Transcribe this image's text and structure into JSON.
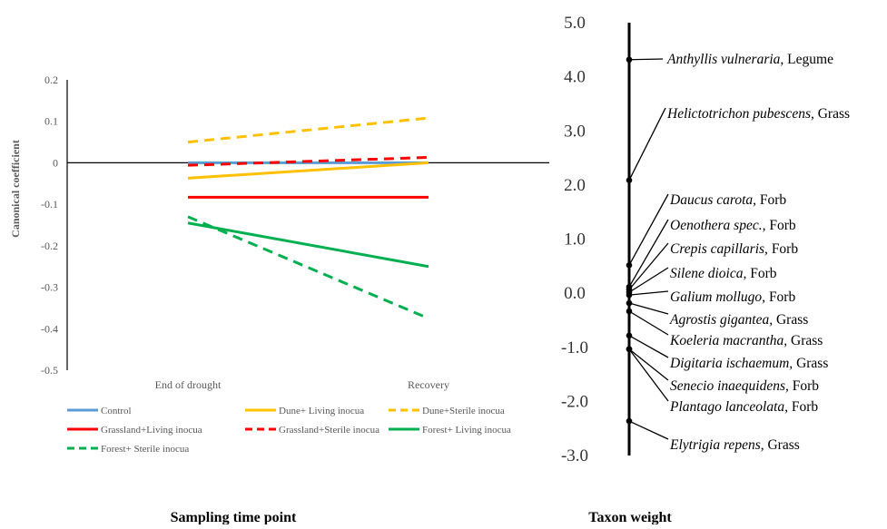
{
  "chart_data": [
    {
      "type": "line",
      "ylabel": "Canonical coefficient",
      "xlabel": "Sampling time point",
      "categories": [
        "End of drought",
        "Recovery"
      ],
      "ylim": [
        -0.5,
        0.2
      ],
      "yticks": [
        "0.2",
        "0.1",
        "0",
        "-0.1",
        "-0.2",
        "-0.3",
        "-0.4",
        "-0.5"
      ],
      "grid": false,
      "legend_position": "bottom",
      "series": [
        {
          "name": "Control",
          "values": [
            0.0,
            0.0
          ],
          "color": "#5b9bd5",
          "dash": "solid"
        },
        {
          "name": "Dune+ Living inocua",
          "values": [
            -0.037,
            0.0
          ],
          "color": "#ffc000",
          "dash": "solid"
        },
        {
          "name": "Dune+Sterile inocua",
          "values": [
            0.05,
            0.108
          ],
          "color": "#ffc000",
          "dash": "dashed"
        },
        {
          "name": "Grassland+Living inocua",
          "values": [
            -0.083,
            -0.083
          ],
          "color": "#ff0000",
          "dash": "solid"
        },
        {
          "name": "Grassland+Sterile inocua",
          "values": [
            -0.006,
            0.013
          ],
          "color": "#ff0000",
          "dash": "dashed"
        },
        {
          "name": "Forest+ Living inocua",
          "values": [
            -0.145,
            -0.25
          ],
          "color": "#00b050",
          "dash": "solid"
        },
        {
          "name": "Forest+ Sterile inocua",
          "values": [
            -0.13,
            -0.375
          ],
          "color": "#00b050",
          "dash": "dashed"
        }
      ]
    },
    {
      "type": "scatter",
      "xlabel": "Taxon weight",
      "ylim": [
        -3.0,
        5.0
      ],
      "yticks": [
        "5.0",
        "4.0",
        "3.0",
        "2.0",
        "1.0",
        "0.0",
        "-1.0",
        "-2.0",
        "-3.0"
      ],
      "points": [
        {
          "genus": "Anthyllis vulneraria",
          "group": ", Legume",
          "value": 4.3
        },
        {
          "genus": "Helictotrichon pubescens,",
          "group": " Grass",
          "value": 2.07
        },
        {
          "genus": "Daucus carota,",
          "group": " Forb",
          "value": 0.5
        },
        {
          "genus": "Oenothera spec.,",
          "group": " Forb",
          "value": 0.1
        },
        {
          "genus": "Crepis capillaris,",
          "group": " Forb",
          "value": 0.05
        },
        {
          "genus": "Silene dioica,",
          "group": " Forb",
          "value": 0.0
        },
        {
          "genus": "Galium mollugo,",
          "group": " Forb",
          "value": -0.05
        },
        {
          "genus": "Agrostis gigantea,",
          "group": " Grass",
          "value": -0.2
        },
        {
          "genus": "Koeleria macrantha,",
          "group": " Grass",
          "value": -0.35
        },
        {
          "genus": "Digitaria ischaemum,",
          "group": " Grass",
          "value": -0.8
        },
        {
          "genus": "Senecio inaequidens,",
          "group": " Forb",
          "value": -1.05
        },
        {
          "genus": "Plantago lanceolata,",
          "group": " Forb",
          "value": -1.05
        },
        {
          "genus": "Elytrigia repens,",
          "group": " Grass",
          "value": -2.38
        }
      ]
    }
  ]
}
